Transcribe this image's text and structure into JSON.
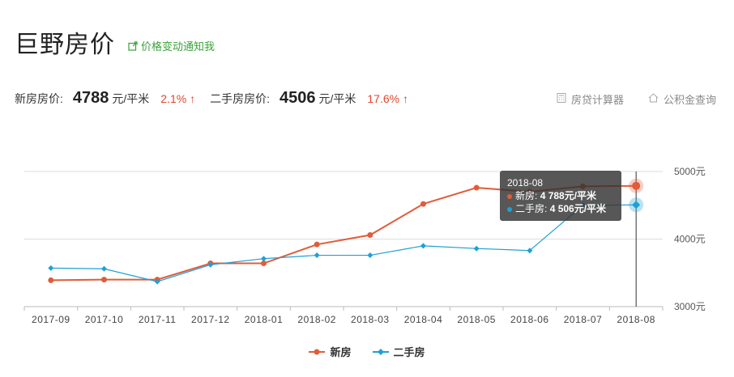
{
  "header": {
    "title": "巨野房价",
    "notify_label": "价格变动通知我"
  },
  "prices": {
    "new": {
      "label": "新房房价:",
      "value": "4788",
      "unit": "元/平米",
      "change": "2.1%",
      "arrow": "↑"
    },
    "resale": {
      "label": "二手房房价:",
      "value": "4506",
      "unit": "元/平米",
      "change": "17.6%",
      "arrow": "↑"
    }
  },
  "tools": {
    "loan_calc": "房贷计算器",
    "fund_query": "公积金查询"
  },
  "tooltip": {
    "title": "2018-08",
    "new_label": "新房:",
    "new_value": "4 788元/平米",
    "resale_label": "二手房:",
    "resale_value": "4 506元/平米"
  },
  "legend": {
    "new": "新房",
    "resale": "二手房"
  },
  "colors": {
    "new": "#e05c3a",
    "resale": "#1fa0d6",
    "up": "#e2462d",
    "link": "#39a339"
  },
  "chart_data": {
    "type": "line",
    "categories": [
      "2017-09",
      "2017-10",
      "2017-11",
      "2017-12",
      "2018-01",
      "2018-02",
      "2018-03",
      "2018-04",
      "2018-05",
      "2018-06",
      "2018-07",
      "2018-08"
    ],
    "series": [
      {
        "name": "新房",
        "values": [
          3390,
          3400,
          3400,
          3640,
          3640,
          3920,
          4060,
          4520,
          4760,
          4700,
          4780,
          4788
        ]
      },
      {
        "name": "二手房",
        "values": [
          3570,
          3560,
          3370,
          3620,
          3710,
          3760,
          3760,
          3900,
          3860,
          3830,
          4500,
          4506
        ]
      }
    ],
    "yticks": [
      "5000元",
      "4000元",
      "3000元"
    ],
    "ytick_values": [
      5000,
      4000,
      3000
    ],
    "ylim": [
      3000,
      5000
    ],
    "grid": true,
    "legend_position": "bottom",
    "highlight_index": 11
  }
}
